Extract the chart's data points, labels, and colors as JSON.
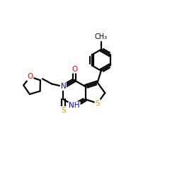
{
  "background": "#ffffff",
  "atom_colors": {
    "N": "#0000ff",
    "O": "#ff0000",
    "S": "#d4a000",
    "C": "#000000",
    "H": "#000000"
  },
  "figsize": [
    2.5,
    2.5
  ],
  "dpi": 100
}
